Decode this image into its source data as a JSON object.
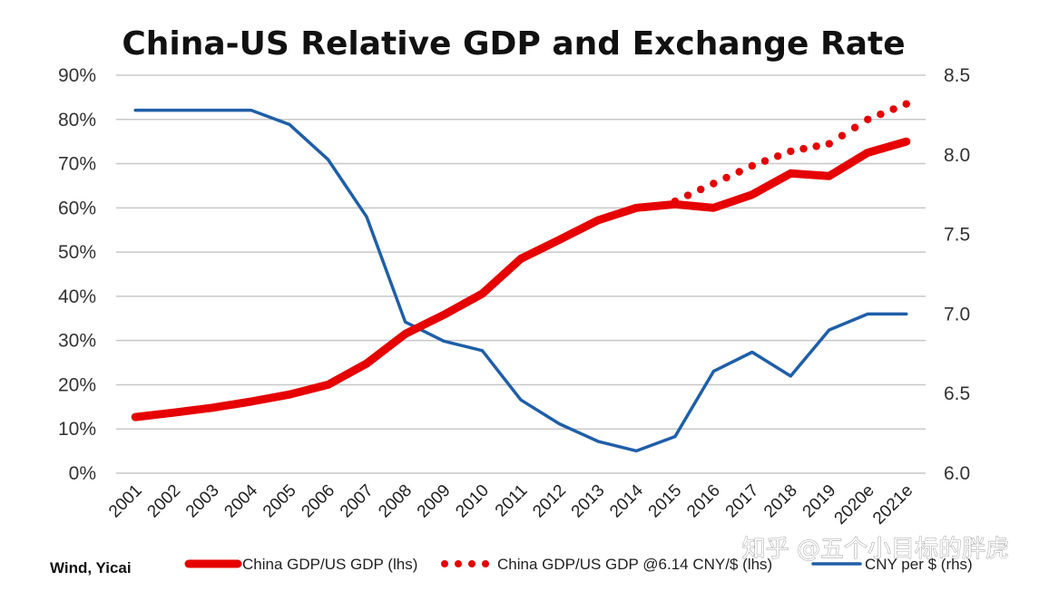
{
  "chart_data": {
    "type": "line",
    "title": "China-US Relative GDP and Exchange Rate",
    "categories": [
      "2001",
      "2002",
      "2003",
      "2004",
      "2005",
      "2006",
      "2007",
      "2008",
      "2009",
      "2010",
      "2011",
      "2012",
      "2013",
      "2014",
      "2015",
      "2016",
      "2017",
      "2018",
      "2019",
      "2020e",
      "2021e"
    ],
    "y_left": {
      "ticks": [
        "0%",
        "10%",
        "20%",
        "30%",
        "40%",
        "50%",
        "60%",
        "70%",
        "80%",
        "90%"
      ],
      "range": [
        0,
        90
      ]
    },
    "y_right": {
      "ticks": [
        "6.0",
        "6.5",
        "7.0",
        "7.5",
        "8.0",
        "8.5"
      ],
      "range": [
        6.0,
        8.5
      ]
    },
    "grid": true,
    "legend_position": "bottom",
    "series": [
      {
        "name": "China GDP/US GDP (lhs)",
        "axis": "left",
        "style": "thick-solid",
        "color": "#e60000",
        "values": [
          12.7,
          13.7,
          14.8,
          16.2,
          17.8,
          20.0,
          24.8,
          31.5,
          35.8,
          40.6,
          48.5,
          52.8,
          57.2,
          60.0,
          60.8,
          60.0,
          63.0,
          67.8,
          67.2,
          72.5,
          75.0
        ]
      },
      {
        "name": "China GDP/US GDP @6.14 CNY/$  (lhs)",
        "axis": "left",
        "style": "dotted",
        "color": "#e60000",
        "values": [
          null,
          null,
          null,
          null,
          null,
          null,
          null,
          null,
          null,
          null,
          null,
          null,
          null,
          null,
          61.5,
          65.5,
          69.5,
          72.8,
          74.5,
          80.0,
          83.5
        ]
      },
      {
        "name": "CNY per $ (rhs)",
        "axis": "right",
        "style": "solid",
        "color": "#1f5fa8",
        "values": [
          8.28,
          8.28,
          8.28,
          8.28,
          8.19,
          7.97,
          7.61,
          6.95,
          6.83,
          6.77,
          6.46,
          6.31,
          6.2,
          6.14,
          6.23,
          6.64,
          6.76,
          6.61,
          6.9,
          7.0,
          7.0
        ]
      }
    ],
    "source": "Wind, Yicai",
    "watermark": "知乎 @五个小目标的胖虎"
  }
}
